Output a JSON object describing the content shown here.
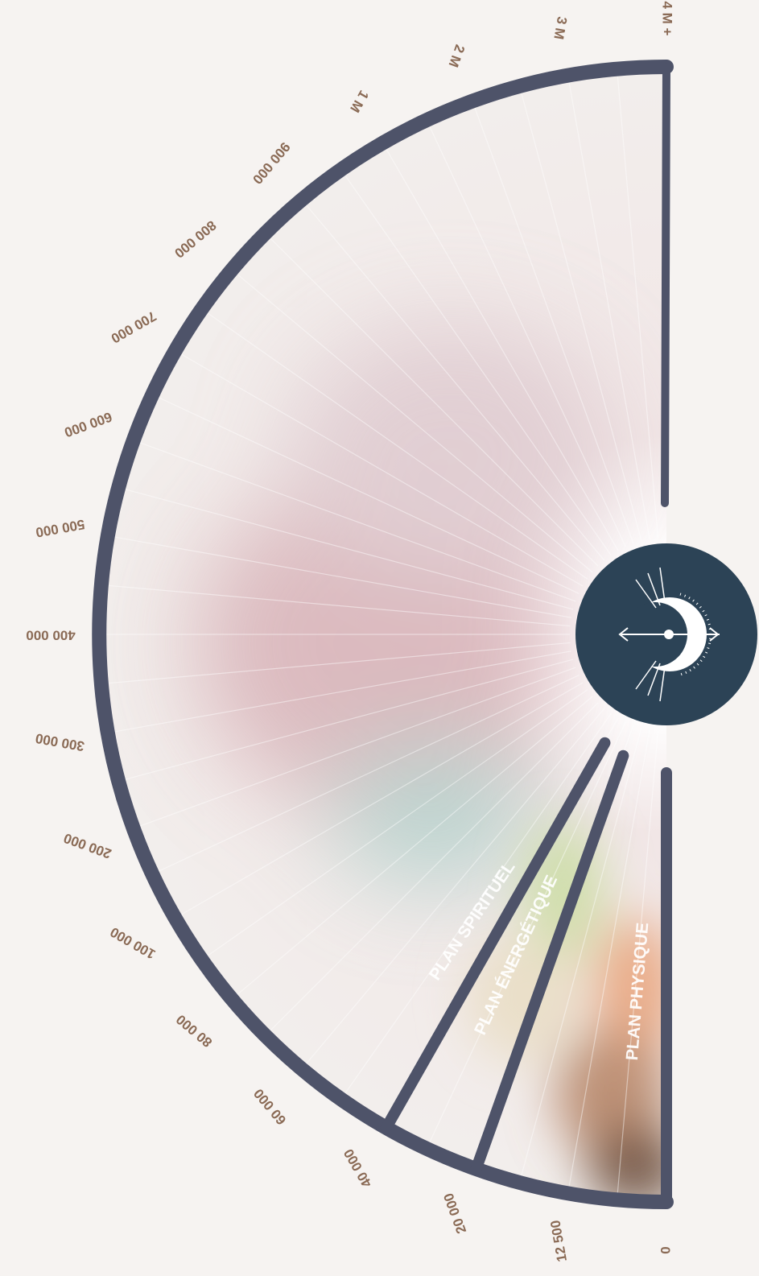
{
  "scale": {
    "ticks": [
      "0",
      "12 500",
      "20 000",
      "40 000",
      "60 000",
      "80 000",
      "100 000",
      "200 000",
      "300 000",
      "400 000",
      "500 000",
      "600 000",
      "700 000",
      "800 000",
      "900 000",
      "1 M",
      "2 M",
      "3 M",
      "4 M +"
    ]
  },
  "planes": [
    "PLAN PHYSIQUE",
    "PLAN ÉNERGÉTIQUE",
    "PLAN SPIRITUEL"
  ]
}
